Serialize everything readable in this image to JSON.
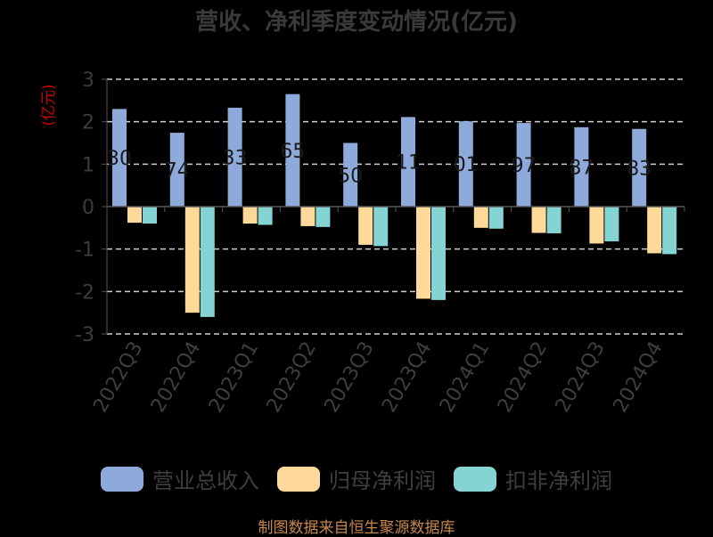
{
  "title": "营收、净利季度变动情况(亿元)",
  "footer": "制图数据来自恒生聚源数据库",
  "chart_data": {
    "type": "bar",
    "title": "营收、净利季度变动情况(亿元)",
    "ylabel": "(亿元)",
    "ylim": [
      -3,
      3
    ],
    "yticks": [
      3,
      2,
      1,
      0,
      -1,
      -2,
      -3
    ],
    "grid": true,
    "legend_position": "bottom",
    "categories": [
      "2022Q3",
      "2022Q4",
      "2023Q1",
      "2023Q2",
      "2023Q3",
      "2023Q4",
      "2024Q1",
      "2024Q2",
      "2024Q3",
      "2024Q4"
    ],
    "series": [
      {
        "name": "营业总收入",
        "color": "#8eaadb",
        "values": [
          2.3,
          1.74,
          2.33,
          2.65,
          1.5,
          2.11,
          2.01,
          1.97,
          1.87,
          1.83
        ],
        "labels": [
          "30",
          "74",
          "33",
          "65",
          "50",
          "11",
          "01",
          "97",
          "87",
          "83"
        ]
      },
      {
        "name": "归母净利润",
        "color": "#ffd99a",
        "values": [
          -0.38,
          -2.5,
          -0.4,
          -0.46,
          -0.9,
          -2.17,
          -0.5,
          -0.62,
          -0.87,
          -1.1
        ]
      },
      {
        "name": "扣非净利润",
        "color": "#85d4d4",
        "values": [
          -0.4,
          -2.6,
          -0.43,
          -0.48,
          -0.93,
          -2.2,
          -0.52,
          -0.63,
          -0.82,
          -1.12
        ]
      }
    ]
  }
}
